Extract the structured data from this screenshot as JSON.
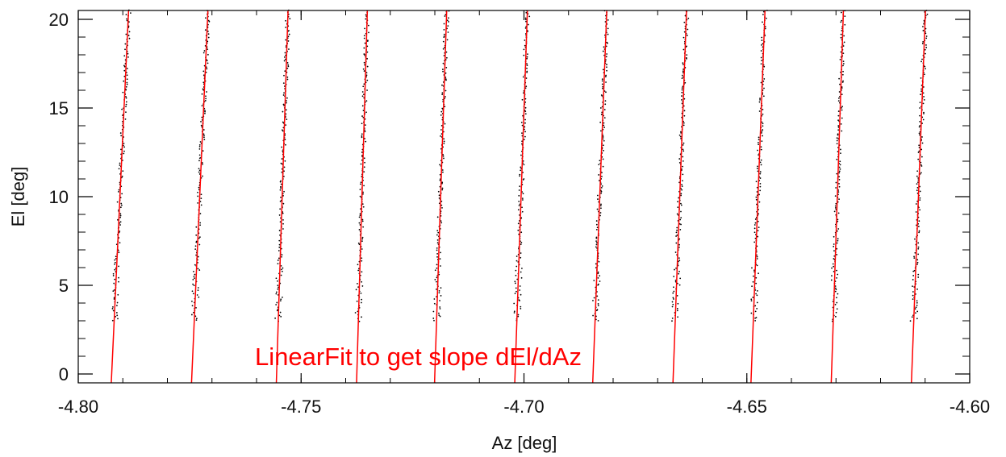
{
  "chart_data": {
    "type": "scatter",
    "title": "",
    "xlabel": "Az [deg]",
    "ylabel": "El [deg]",
    "xlim": [
      -4.8,
      -4.6
    ],
    "ylim": [
      -0.5,
      20.5
    ],
    "x_ticks": [
      -4.8,
      -4.75,
      -4.7,
      -4.65,
      -4.6
    ],
    "x_tick_labels": [
      "-4.80",
      "-4.75",
      "-4.70",
      "-4.65",
      "-4.60"
    ],
    "y_ticks": [
      0,
      5,
      10,
      15,
      20
    ],
    "y_tick_labels": [
      "0",
      "5",
      "10",
      "15",
      "20"
    ],
    "x_minor_step": 0.01,
    "y_minor_step": 1,
    "grid": false,
    "annotation": {
      "text": "LinearFit to get slope dEl/dAz",
      "color": "#ff0000"
    },
    "series": [
      {
        "kind": "scatter",
        "color": "#000000",
        "point_el_range": [
          3,
          20.5
        ],
        "point_x_scatter_deg": 0.0005,
        "scans": [
          {
            "az_at_el0": -4.7925,
            "az_at_el20": -4.7888
          },
          {
            "az_at_el0": -4.7745,
            "az_at_el20": -4.771
          },
          {
            "az_at_el0": -4.7555,
            "az_at_el20": -4.753
          },
          {
            "az_at_el0": -4.7375,
            "az_at_el20": -4.7352
          },
          {
            "az_at_el0": -4.72,
            "az_at_el20": -4.7174
          },
          {
            "az_at_el0": -4.702,
            "az_at_el20": -4.6993
          },
          {
            "az_at_el0": -4.6845,
            "az_at_el20": -4.6815
          },
          {
            "az_at_el0": -4.6665,
            "az_at_el20": -4.6636
          },
          {
            "az_at_el0": -4.649,
            "az_at_el20": -4.646
          },
          {
            "az_at_el0": -4.631,
            "az_at_el20": -4.6284
          },
          {
            "az_at_el0": -4.613,
            "az_at_el20": -4.61
          }
        ]
      },
      {
        "kind": "linear-fit",
        "color": "#ff0000",
        "el_range": [
          -0.5,
          20.5
        ]
      }
    ]
  }
}
